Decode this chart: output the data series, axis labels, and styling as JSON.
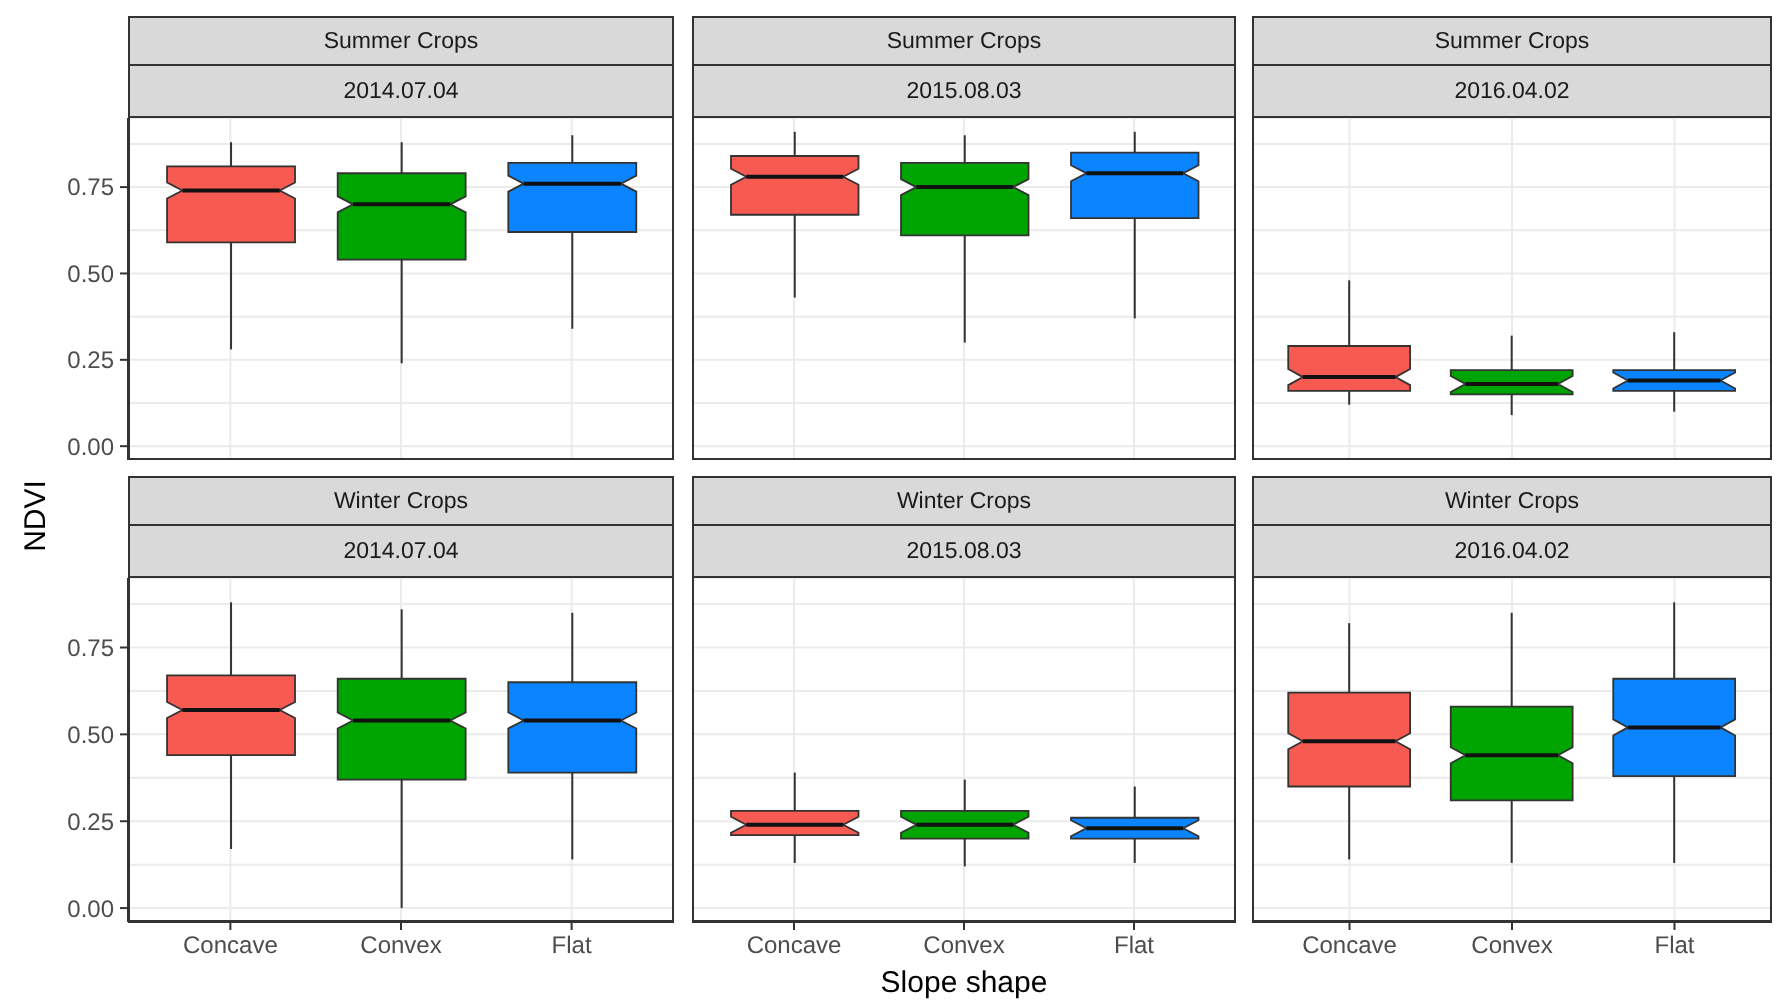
{
  "chart_data": [
    {
      "type": "box",
      "title": "Summer Crops",
      "subtitle": "2014.07.04",
      "ylabel": "NDVI",
      "categories": [
        "Concave",
        "Convex",
        "Flat"
      ],
      "colors": [
        "#f65a50",
        "#00a400",
        "#0a84ff"
      ],
      "boxes": [
        {
          "low": 0.28,
          "q1": 0.59,
          "median": 0.74,
          "q3": 0.81,
          "high": 0.88
        },
        {
          "low": 0.24,
          "q1": 0.54,
          "median": 0.7,
          "q3": 0.79,
          "high": 0.88
        },
        {
          "low": 0.34,
          "q1": 0.62,
          "median": 0.76,
          "q3": 0.82,
          "high": 0.9
        }
      ],
      "ylim": [
        -0.04,
        0.95
      ],
      "yticks": [
        {
          "value": 0,
          "label": "0.00"
        },
        {
          "value": 0.125,
          "label": null
        },
        {
          "value": 0.25,
          "label": "0.25"
        },
        {
          "value": 0.375,
          "label": null
        },
        {
          "value": 0.5,
          "label": "0.50"
        },
        {
          "value": 0.625,
          "label": null
        },
        {
          "value": 0.75,
          "label": "0.75"
        },
        {
          "value": 0.875,
          "label": null
        }
      ],
      "grid": true,
      "tick_labels": "y"
    },
    {
      "type": "box",
      "title": "Summer Crops",
      "subtitle": "2015.08.03",
      "categories": [
        "Concave",
        "Convex",
        "Flat"
      ],
      "colors": [
        "#f65a50",
        "#00a400",
        "#0a84ff"
      ],
      "boxes": [
        {
          "low": 0.43,
          "q1": 0.67,
          "median": 0.78,
          "q3": 0.84,
          "high": 0.91
        },
        {
          "low": 0.3,
          "q1": 0.61,
          "median": 0.75,
          "q3": 0.82,
          "high": 0.9
        },
        {
          "low": 0.37,
          "q1": 0.66,
          "median": 0.79,
          "q3": 0.85,
          "high": 0.91
        }
      ],
      "ylim": [
        -0.04,
        0.95
      ],
      "yticks": [
        {
          "value": 0,
          "label": "0.00"
        },
        {
          "value": 0.125,
          "label": null
        },
        {
          "value": 0.25,
          "label": "0.25"
        },
        {
          "value": 0.375,
          "label": null
        },
        {
          "value": 0.5,
          "label": "0.50"
        },
        {
          "value": 0.625,
          "label": null
        },
        {
          "value": 0.75,
          "label": "0.75"
        },
        {
          "value": 0.875,
          "label": null
        }
      ],
      "grid": true,
      "tick_labels": false
    },
    {
      "type": "box",
      "title": "Summer Crops",
      "subtitle": "2016.04.02",
      "categories": [
        "Concave",
        "Convex",
        "Flat"
      ],
      "colors": [
        "#f65a50",
        "#00a400",
        "#0a84ff"
      ],
      "boxes": [
        {
          "low": 0.12,
          "q1": 0.16,
          "median": 0.2,
          "q3": 0.29,
          "high": 0.48
        },
        {
          "low": 0.09,
          "q1": 0.15,
          "median": 0.18,
          "q3": 0.22,
          "high": 0.32
        },
        {
          "low": 0.1,
          "q1": 0.16,
          "median": 0.19,
          "q3": 0.22,
          "high": 0.33
        }
      ],
      "ylim": [
        -0.04,
        0.95
      ],
      "yticks": [
        {
          "value": 0,
          "label": "0.00"
        },
        {
          "value": 0.125,
          "label": null
        },
        {
          "value": 0.25,
          "label": "0.25"
        },
        {
          "value": 0.375,
          "label": null
        },
        {
          "value": 0.5,
          "label": "0.50"
        },
        {
          "value": 0.625,
          "label": null
        },
        {
          "value": 0.75,
          "label": "0.75"
        },
        {
          "value": 0.875,
          "label": null
        }
      ],
      "grid": true,
      "tick_labels": false
    },
    {
      "type": "box",
      "title": "Winter Crops",
      "subtitle": "2014.07.04",
      "categories": [
        "Concave",
        "Convex",
        "Flat"
      ],
      "colors": [
        "#f65a50",
        "#00a400",
        "#0a84ff"
      ],
      "boxes": [
        {
          "low": 0.17,
          "q1": 0.44,
          "median": 0.57,
          "q3": 0.67,
          "high": 0.88
        },
        {
          "low": 0.0,
          "q1": 0.37,
          "median": 0.54,
          "q3": 0.66,
          "high": 0.86
        },
        {
          "low": 0.14,
          "q1": 0.39,
          "median": 0.54,
          "q3": 0.65,
          "high": 0.85
        }
      ],
      "ylim": [
        -0.04,
        0.95
      ],
      "yticks": [
        {
          "value": 0,
          "label": "0.00"
        },
        {
          "value": 0.125,
          "label": null
        },
        {
          "value": 0.25,
          "label": "0.25"
        },
        {
          "value": 0.375,
          "label": null
        },
        {
          "value": 0.5,
          "label": "0.50"
        },
        {
          "value": 0.625,
          "label": null
        },
        {
          "value": 0.75,
          "label": "0.75"
        },
        {
          "value": 0.875,
          "label": null
        }
      ],
      "grid": true
    },
    {
      "type": "box",
      "title": "Winter Crops",
      "subtitle": "2015.08.03",
      "xlabel": "Slope shape",
      "categories": [
        "Concave",
        "Convex",
        "Flat"
      ],
      "colors": [
        "#f65a50",
        "#00a400",
        "#0a84ff"
      ],
      "boxes": [
        {
          "low": 0.13,
          "q1": 0.21,
          "median": 0.24,
          "q3": 0.28,
          "high": 0.39
        },
        {
          "low": 0.12,
          "q1": 0.2,
          "median": 0.24,
          "q3": 0.28,
          "high": 0.37
        },
        {
          "low": 0.13,
          "q1": 0.2,
          "median": 0.23,
          "q3": 0.26,
          "high": 0.35
        }
      ],
      "ylim": [
        -0.04,
        0.95
      ],
      "yticks": [
        {
          "value": 0,
          "label": "0.00"
        },
        {
          "value": 0.125,
          "label": null
        },
        {
          "value": 0.25,
          "label": "0.25"
        },
        {
          "value": 0.375,
          "label": null
        },
        {
          "value": 0.5,
          "label": "0.50"
        },
        {
          "value": 0.625,
          "label": null
        },
        {
          "value": 0.75,
          "label": "0.75"
        },
        {
          "value": 0.875,
          "label": null
        }
      ],
      "grid": true,
      "tick_labels": "x"
    },
    {
      "type": "box",
      "title": "Winter Crops",
      "subtitle": "2016.04.02",
      "categories": [
        "Concave",
        "Convex",
        "Flat"
      ],
      "colors": [
        "#f65a50",
        "#00a400",
        "#0a84ff"
      ],
      "boxes": [
        {
          "low": 0.14,
          "q1": 0.35,
          "median": 0.48,
          "q3": 0.62,
          "high": 0.82
        },
        {
          "low": 0.13,
          "q1": 0.31,
          "median": 0.44,
          "q3": 0.58,
          "high": 0.85
        },
        {
          "low": 0.13,
          "q1": 0.38,
          "median": 0.52,
          "q3": 0.66,
          "high": 0.88
        }
      ],
      "ylim": [
        -0.04,
        0.95
      ],
      "yticks": [
        {
          "value": 0,
          "label": "0.00"
        },
        {
          "value": 0.125,
          "label": null
        },
        {
          "value": 0.25,
          "label": "0.25"
        },
        {
          "value": 0.375,
          "label": null
        },
        {
          "value": 0.5,
          "label": "0.50"
        },
        {
          "value": 0.625,
          "label": null
        },
        {
          "value": 0.75,
          "label": "0.75"
        },
        {
          "value": 0.875,
          "label": null
        }
      ],
      "grid": true,
      "tick_labels": "x"
    }
  ]
}
